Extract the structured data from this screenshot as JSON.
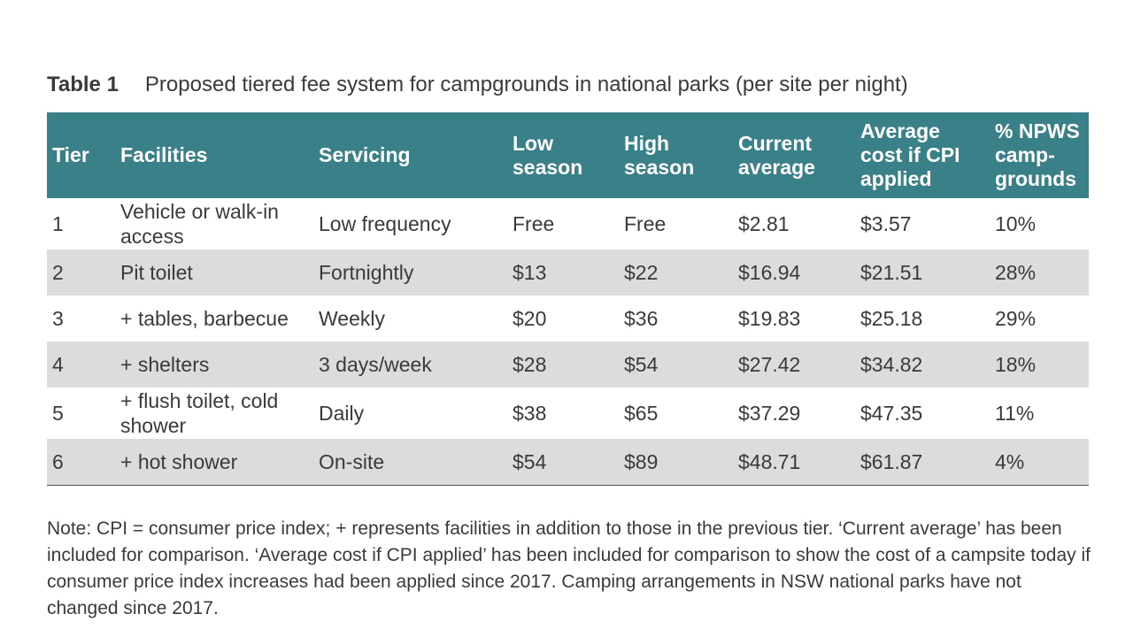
{
  "caption": {
    "label": "Table 1",
    "title": "Proposed tiered fee system for campgrounds in national parks (per site per night)"
  },
  "table": {
    "headers": [
      "Tier",
      "Facilities",
      "Servicing",
      "Low season",
      "High season",
      "Current average",
      "Average cost if CPI applied",
      "% NPWS camp-grounds"
    ],
    "rows": [
      [
        "1",
        "Vehicle or walk-in access",
        "Low frequency",
        "Free",
        "Free",
        "$2.81",
        "$3.57",
        "10%"
      ],
      [
        "2",
        "Pit toilet",
        "Fortnightly",
        "$13",
        "$22",
        "$16.94",
        "$21.51",
        "28%"
      ],
      [
        "3",
        "+ tables, barbecue",
        "Weekly",
        "$20",
        "$36",
        "$19.83",
        "$25.18",
        "29%"
      ],
      [
        "4",
        "+ shelters",
        "3 days/week",
        "$28",
        "$54",
        "$27.42",
        "$34.82",
        "18%"
      ],
      [
        "5",
        "+ flush toilet, cold shower",
        "Daily",
        "$38",
        "$65",
        "$37.29",
        "$47.35",
        "11%"
      ],
      [
        "6",
        "+ hot shower",
        "On-site",
        "$54",
        "$89",
        "$48.71",
        "$61.87",
        "4%"
      ]
    ]
  },
  "note": "Note: CPI = consumer price index; + represents facilities in addition to those in the previous tier. ‘Current average’ has been included for comparison. ‘Average cost if CPI applied’ has been included for comparison to show the cost of a campsite today if consumer price index increases had been applied since 2017. Camping arrangements in NSW national parks have not changed since 2017.",
  "colors": {
    "header_bg": "#3a8089",
    "shaded_row_bg": "#dcdcde",
    "text": "#3a3a3a"
  }
}
